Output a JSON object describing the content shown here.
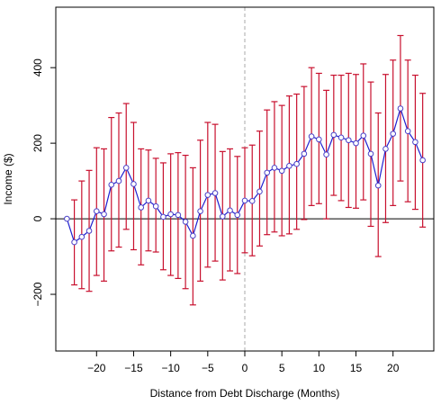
{
  "chart_data": {
    "type": "line",
    "title": "",
    "xlabel": "Distance from Debt Discharge (Months)",
    "ylabel": "Income ($)",
    "xlim": [
      -25.5,
      25.5
    ],
    "ylim": [
      -350,
      560
    ],
    "xticks": [
      -20,
      -15,
      -10,
      -5,
      0,
      5,
      10,
      15,
      20
    ],
    "yticks": [
      -200,
      0,
      200,
      400
    ],
    "xtick_labels": [
      "−20",
      "−15",
      "−10",
      "−5",
      "0",
      "5",
      "10",
      "15",
      "20"
    ],
    "ytick_labels": [
      "−200",
      "0",
      "200",
      "400"
    ],
    "reference_lines": {
      "horizontal_at_y": 0,
      "vertical_dashed_at_x": 0
    },
    "grid": false,
    "legend": "none",
    "colors": {
      "line": "#2020d0",
      "marker": "#4a40c8",
      "errorbar": "#c8102e",
      "zero_line": "#000000",
      "vline": "#a8a8a8"
    },
    "series": [
      {
        "x": [
          -24,
          -23,
          -22,
          -21,
          -20,
          -19,
          -18,
          -17,
          -16,
          -15,
          -14,
          -13,
          -12,
          -11,
          -10,
          -9,
          -8,
          -7,
          -6,
          -5,
          -4,
          -3,
          -2,
          -1,
          0,
          1,
          2,
          3,
          4,
          5,
          6,
          7,
          8,
          9,
          10,
          11,
          12,
          13,
          14,
          15,
          16,
          17,
          18,
          19,
          20,
          21,
          22,
          23,
          24
        ],
        "y": [
          0,
          -62,
          -48,
          -32,
          20,
          12,
          90,
          100,
          135,
          92,
          30,
          48,
          33,
          5,
          12,
          10,
          -8,
          -45,
          20,
          63,
          68,
          6,
          22,
          10,
          48,
          47,
          72,
          122,
          135,
          127,
          140,
          145,
          172,
          218,
          210,
          170,
          222,
          215,
          208,
          200,
          220,
          172,
          88,
          185,
          225,
          292,
          232,
          203,
          155
        ],
        "lower": [
          null,
          -175,
          -185,
          -192,
          -150,
          -165,
          -85,
          -75,
          -28,
          -82,
          -122,
          -85,
          -88,
          -135,
          -150,
          -158,
          -185,
          -228,
          -165,
          -128,
          -112,
          -162,
          -138,
          -145,
          -90,
          -98,
          -72,
          -42,
          -35,
          -45,
          -40,
          -28,
          -2,
          35,
          40,
          0,
          62,
          48,
          30,
          28,
          50,
          -20,
          -100,
          -10,
          35,
          100,
          45,
          25,
          -22
        ],
        "upper": [
          null,
          50,
          100,
          128,
          188,
          185,
          268,
          280,
          305,
          255,
          185,
          182,
          160,
          148,
          172,
          175,
          168,
          135,
          208,
          255,
          250,
          178,
          185,
          165,
          188,
          195,
          232,
          288,
          310,
          300,
          325,
          330,
          350,
          400,
          385,
          340,
          380,
          380,
          385,
          382,
          410,
          362,
          280,
          382,
          420,
          485,
          420,
          380,
          332
        ]
      }
    ]
  }
}
